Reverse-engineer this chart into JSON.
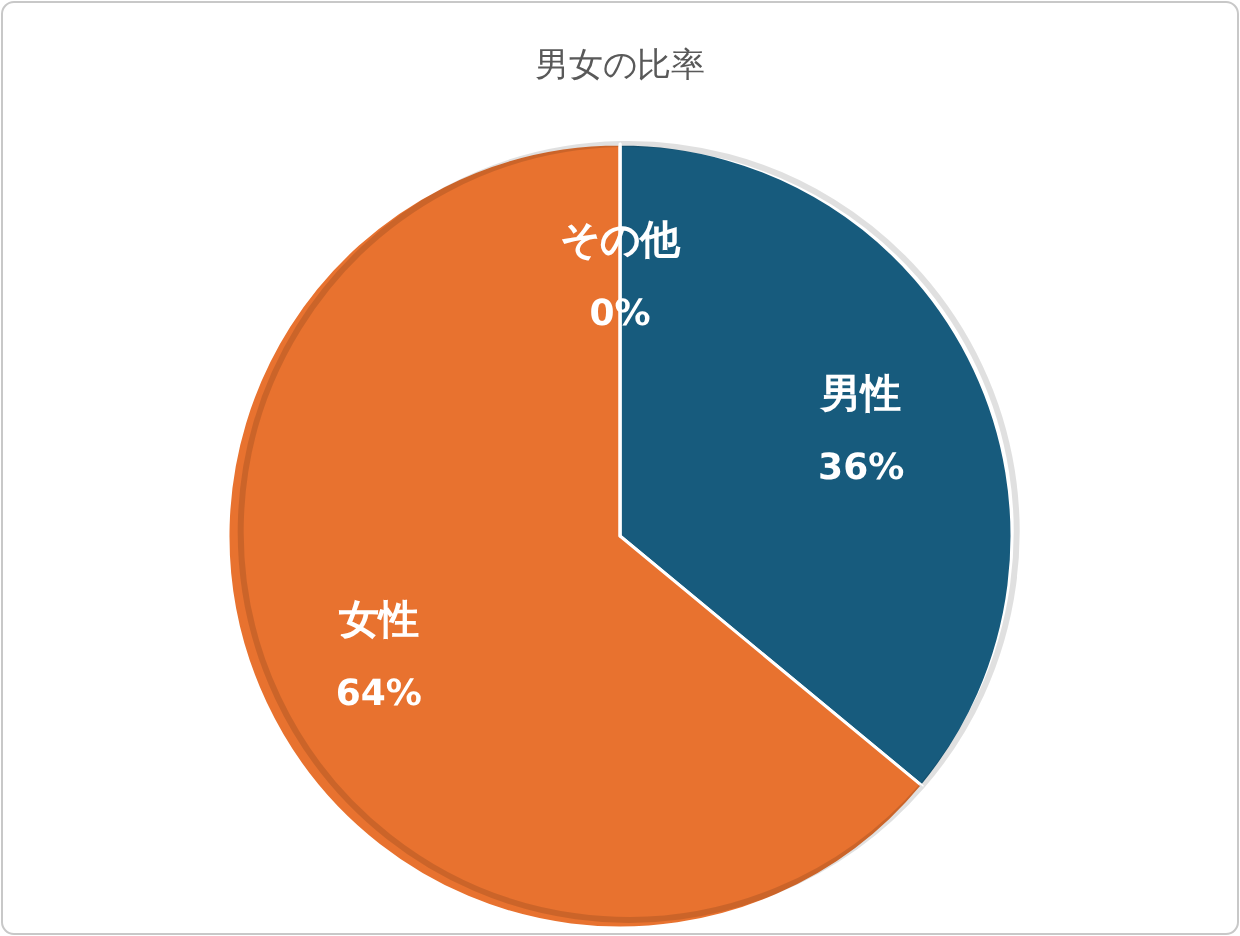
{
  "chart_data": {
    "type": "pie",
    "title": "男女の比率",
    "categories": [
      "男性",
      "女性",
      "その他"
    ],
    "values": [
      36,
      64,
      0
    ],
    "value_labels": [
      "36%",
      "64%",
      "0%"
    ],
    "colors": [
      "#175b7d",
      "#e8722f",
      "#a5a5a5"
    ],
    "legend": false
  }
}
